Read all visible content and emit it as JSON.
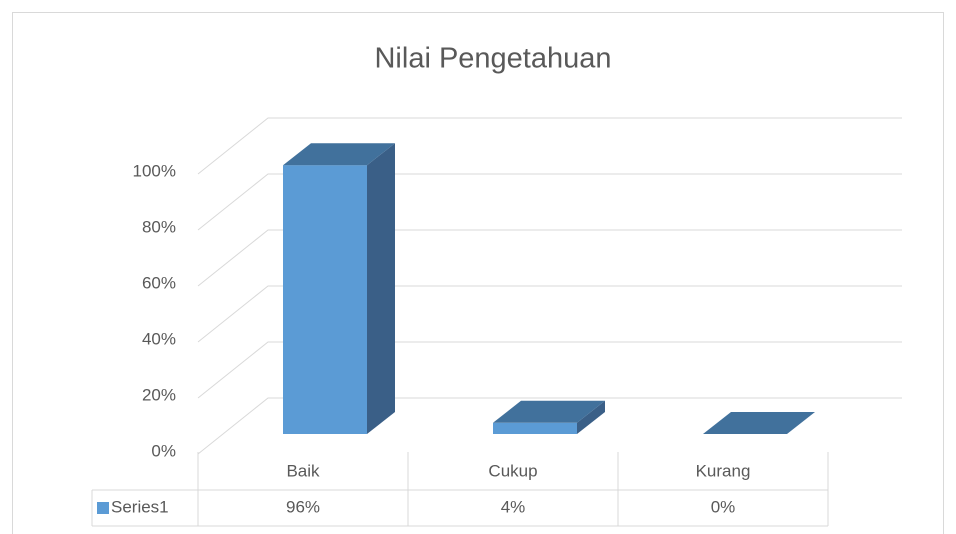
{
  "chart_data": {
    "type": "bar3d",
    "title": "Nilai Pengetahuan",
    "categories": [
      "Baik",
      "Cukup",
      "Kurang"
    ],
    "series": [
      {
        "name": "Series1",
        "color": "#5b9bd5",
        "values": [
          96,
          4,
          0
        ],
        "value_labels": [
          "96%",
          "4%",
          "0%"
        ]
      }
    ],
    "ylim": [
      0,
      100
    ],
    "yticks": [
      {
        "value": 0,
        "label": "0%"
      },
      {
        "value": 20,
        "label": "20%"
      },
      {
        "value": 40,
        "label": "40%"
      },
      {
        "value": 60,
        "label": "60%"
      },
      {
        "value": 80,
        "label": "80%"
      },
      {
        "value": 100,
        "label": "100%"
      }
    ],
    "grid": true,
    "data_table": true
  }
}
